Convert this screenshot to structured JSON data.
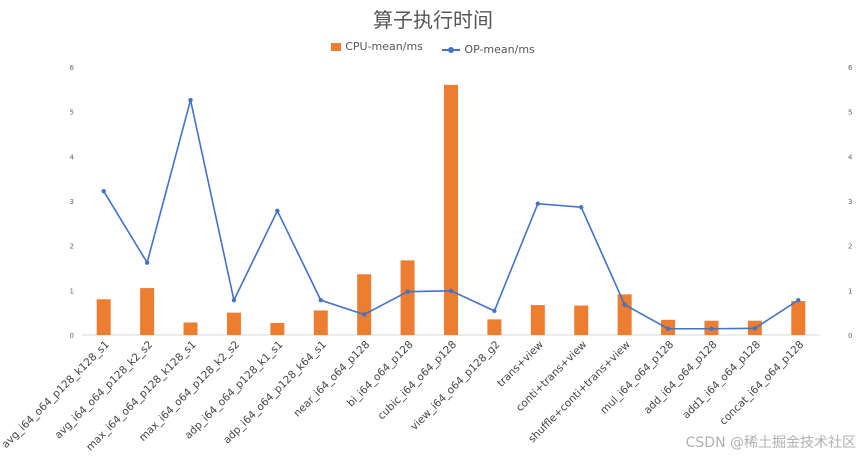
{
  "chart_data": {
    "type": "bar",
    "title": "算子执行时间",
    "categories": [
      "avg_i64_o64_p128_k128_s1",
      "avg_i64_o64_p128_k2_s2",
      "max_i64_o64_p128_k128_s1",
      "max_i64_o64_p128_k2_s2",
      "adp_i64_o64_p128_k1_s1",
      "adp_i64_o64_p128_k64_s1",
      "near_i64_o64_p128",
      "bi_i64_o64_p128",
      "cubic_i64_o64_p128",
      "view_i64_o64_p128_g2",
      "trans+view",
      "conti+trans+view",
      "shuffle+conti+trans+view",
      "mul_i64_o64_p128",
      "add_i64_o64_p128",
      "add1_i64_o64_p128",
      "concat_i64_o64_p128"
    ],
    "series": [
      {
        "name": "CPU-mean/ms",
        "type": "bar",
        "axis": "left",
        "color": "#ED7D31",
        "values": [
          0.8,
          1.05,
          0.28,
          0.5,
          0.27,
          0.55,
          1.36,
          1.67,
          5.6,
          0.35,
          0.67,
          0.66,
          0.91,
          0.34,
          0.32,
          0.32,
          0.76
        ]
      },
      {
        "name": "OP-mean/ms",
        "type": "line",
        "axis": "right",
        "color": "#4472C4",
        "values": [
          3.22,
          1.62,
          5.26,
          0.78,
          2.78,
          0.78,
          0.46,
          0.97,
          0.99,
          0.54,
          2.94,
          2.86,
          0.68,
          0.14,
          0.14,
          0.15,
          0.78
        ]
      }
    ],
    "ylim": [
      0,
      6
    ],
    "y_ticks": [
      0,
      1,
      2,
      3,
      4,
      5,
      6
    ],
    "y2lim": [
      0,
      6
    ],
    "y2_ticks": [
      0,
      1,
      2,
      3,
      4,
      5,
      6
    ],
    "legend_position": "top",
    "grid": false
  },
  "watermark": "CSDN @稀土掘金技术社区"
}
